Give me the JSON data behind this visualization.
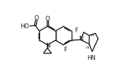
{
  "bg": "#ffffff",
  "col": "#1a1a1a",
  "lw": 1.0,
  "fs": 5.8,
  "figsize": [
    1.96,
    1.13
  ],
  "dpi": 100,
  "xlim": [
    0,
    196
  ],
  "ylim": [
    0,
    113
  ]
}
